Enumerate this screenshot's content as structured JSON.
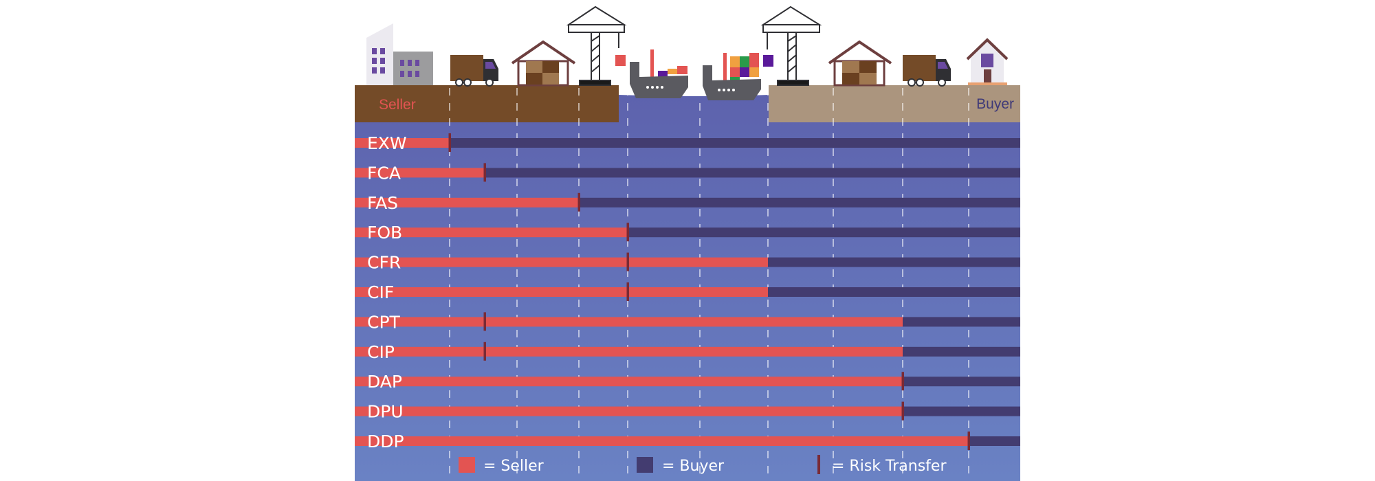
{
  "ground": {
    "seller_label": "Seller",
    "buyer_label": "Buyer"
  },
  "colors": {
    "seller": "#e35452",
    "buyer": "#433c70",
    "risk": "#7a2a35",
    "sea": "#5e63ad",
    "seller_ground": "#744b28",
    "buyer_ground": "#ab957e"
  },
  "icons": [
    "office-building-icon",
    "truck-icon",
    "warehouse-icon",
    "crane-icon",
    "cargo-ship-icon",
    "cargo-ship-icon",
    "crane-icon",
    "warehouse-icon",
    "truck-icon",
    "house-icon"
  ],
  "rows": [
    {
      "code": "EXW",
      "risk_point": 0,
      "cost_point": 0
    },
    {
      "code": "FCA",
      "risk_point": 1,
      "cost_point": 1
    },
    {
      "code": "FAS",
      "risk_point": 2,
      "cost_point": 2
    },
    {
      "code": "FOB",
      "risk_point": 3,
      "cost_point": 3
    },
    {
      "code": "CFR",
      "risk_point": 3,
      "cost_point": 4
    },
    {
      "code": "CIF",
      "risk_point": 3,
      "cost_point": 4
    },
    {
      "code": "CPT",
      "risk_point": 1,
      "cost_point": 5
    },
    {
      "code": "CIP",
      "risk_point": 1,
      "cost_point": 5
    },
    {
      "code": "DAP",
      "risk_point": 5,
      "cost_point": 5
    },
    {
      "code": "DPU",
      "risk_point": 5,
      "cost_point": 5
    },
    {
      "code": "DDP",
      "risk_point": 6,
      "cost_point": 6
    }
  ],
  "legend": {
    "seller": "= Seller",
    "buyer": "= Buyer",
    "risk": "= Risk Transfer"
  }
}
